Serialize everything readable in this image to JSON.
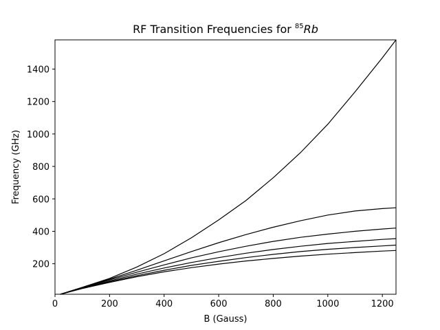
{
  "chart_data": {
    "type": "line",
    "title_prefix": "RF Transition Frequencies for ",
    "title_sup": "85",
    "title_italic": "Rb",
    "xlabel": "B (Gauss)",
    "ylabel": "Frequency (GHz)",
    "xlim": [
      0,
      1250
    ],
    "ylim": [
      12,
      1580
    ],
    "xticks": [
      0,
      200,
      400,
      600,
      800,
      1000,
      1200
    ],
    "yticks": [
      200,
      400,
      600,
      800,
      1000,
      1200,
      1400
    ],
    "grid": false,
    "line_color": "#000000",
    "x": [
      20,
      100,
      200,
      300,
      400,
      500,
      600,
      700,
      800,
      900,
      1000,
      1100,
      1200,
      1250
    ],
    "series": [
      {
        "values": [
          12,
          55,
          110,
          180,
          262,
          360,
          470,
          590,
          730,
          885,
          1060,
          1260,
          1470,
          1580
        ]
      },
      {
        "values": [
          12,
          55,
          105,
          160,
          218,
          275,
          330,
          380,
          425,
          465,
          500,
          525,
          540,
          545
        ]
      },
      {
        "values": [
          12,
          53,
          100,
          148,
          193,
          236,
          274,
          308,
          338,
          363,
          383,
          400,
          414,
          420
        ]
      },
      {
        "values": [
          12,
          51,
          94,
          136,
          174,
          208,
          238,
          265,
          288,
          308,
          325,
          338,
          350,
          355
        ]
      },
      {
        "values": [
          12,
          49,
          89,
          127,
          160,
          190,
          215,
          238,
          258,
          275,
          289,
          300,
          310,
          315
        ]
      },
      {
        "values": [
          12,
          47,
          85,
          120,
          150,
          176,
          198,
          217,
          233,
          247,
          259,
          269,
          278,
          282
        ]
      }
    ]
  }
}
